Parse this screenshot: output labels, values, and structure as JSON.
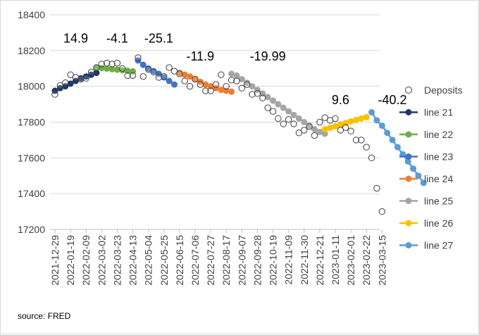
{
  "chart_data": {
    "type": "scatter",
    "source_note": "source: FRED",
    "y_ticks": [
      17200,
      17400,
      17600,
      17800,
      18000,
      18200,
      18400
    ],
    "ylim": [
      17200,
      18400
    ],
    "x_tick_labels": [
      "2021-12-29",
      "2022-01-19",
      "2022-02-09",
      "2022-03-02",
      "2022-03-23",
      "2022-04-13",
      "2022-05-04",
      "2022-05-25",
      "2022-06-15",
      "2022-07-06",
      "2022-07-27",
      "2022-08-17",
      "2022-09-07",
      "2022-09-28",
      "2022-10-19",
      "2022-11-09",
      "2022-11-30",
      "2022-12-21",
      "2023-01-11",
      "2023-02-01",
      "2023-02-22",
      "2023-03-15"
    ],
    "x_tick_step_weeks": 3,
    "grid": "horizontal",
    "legend_position": "right",
    "deposits": {
      "name": "Deposits",
      "color": "#404040",
      "values": [
        17955,
        18005,
        18020,
        18065,
        18050,
        18040,
        18045,
        18080,
        18105,
        18125,
        18130,
        18125,
        18130,
        18100,
        18060,
        18060,
        18160,
        18055,
        18095,
        18080,
        18050,
        18055,
        18105,
        18085,
        18070,
        18030,
        18000,
        18040,
        18010,
        17975,
        17975,
        18010,
        18065,
        18000,
        18035,
        18030,
        17990,
        18010,
        17955,
        17960,
        17935,
        17880,
        17860,
        17820,
        17790,
        17815,
        17790,
        17740,
        17755,
        17775,
        17725,
        17800,
        17825,
        17810,
        17820,
        17755,
        17770,
        17750,
        17700,
        17700,
        17660,
        17600,
        17430,
        17300
      ]
    },
    "lines": [
      {
        "name": "line 21",
        "color": "#1f3864",
        "start": 0,
        "values": [
          17975,
          17990,
          18000,
          18015,
          18030,
          18045,
          18055,
          18065,
          18075
        ]
      },
      {
        "name": "line 22",
        "color": "#70ad47",
        "start": 8,
        "values": [
          18105,
          18102,
          18099,
          18096,
          18093,
          18090,
          18087,
          18084
        ]
      },
      {
        "name": "line 23",
        "color": "#4472c4",
        "start": 16,
        "values": [
          18145,
          18120,
          18100,
          18085,
          18070,
          18050,
          18030,
          18010
        ]
      },
      {
        "name": "line 24",
        "color": "#ed7d31",
        "start": 24,
        "values": [
          18075,
          18065,
          18055,
          18040,
          18025,
          18010,
          18000,
          17990,
          17980,
          17975,
          17970
        ]
      },
      {
        "name": "line 25",
        "color": "#a5a5a5",
        "start": 34,
        "values": [
          18070,
          18060,
          18040,
          18020,
          18000,
          17980,
          17960,
          17940,
          17920,
          17900,
          17880,
          17860,
          17840,
          17820,
          17800,
          17780,
          17760,
          17745,
          17735
        ]
      },
      {
        "name": "line 26",
        "color": "#ffc000",
        "start": 52,
        "values": [
          17760,
          17768,
          17777,
          17786,
          17795,
          17804,
          17812,
          17820,
          17828
        ]
      },
      {
        "name": "line 27",
        "color": "#5b9bd5",
        "start": 61,
        "values": [
          17855,
          17810,
          17780,
          17740,
          17700,
          17660,
          17620,
          17580,
          17540,
          17500,
          17460
        ]
      }
    ],
    "annotations": [
      {
        "text": "14.9",
        "x_index": 4,
        "y": 18245
      },
      {
        "text": "-4.1",
        "x_index": 12,
        "y": 18245
      },
      {
        "text": "-25.1",
        "x_index": 20,
        "y": 18245
      },
      {
        "text": "-11.9",
        "x_index": 28,
        "y": 18145
      },
      {
        "text": "-19.99",
        "x_index": 41,
        "y": 18145
      },
      {
        "text": "9.6",
        "x_index": 55,
        "y": 17900
      },
      {
        "text": "-40.2",
        "x_index": 65,
        "y": 17900
      }
    ]
  }
}
